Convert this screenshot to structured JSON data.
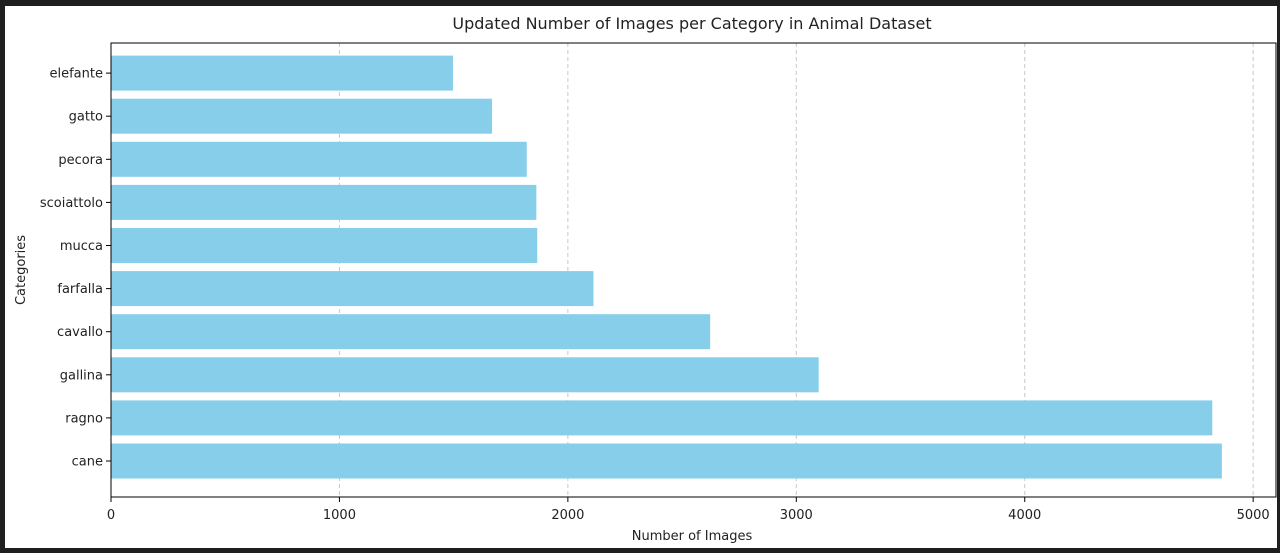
{
  "chart_data": {
    "type": "bar",
    "orientation": "horizontal",
    "title": "Updated Number of Images per Category in Animal Dataset",
    "xlabel": "Number of Images",
    "ylabel": "Categories",
    "categories": [
      "cane",
      "ragno",
      "gallina",
      "cavallo",
      "farfalla",
      "mucca",
      "scoiattolo",
      "pecora",
      "gatto",
      "elefante"
    ],
    "values": [
      4863,
      4821,
      3098,
      2623,
      2112,
      1866,
      1862,
      1820,
      1668,
      1497
    ],
    "xlim": [
      0,
      5100
    ],
    "xticks": [
      0,
      1000,
      2000,
      3000,
      4000,
      5000
    ],
    "grid": "x-dashed",
    "bar_color": "#87ceeb"
  }
}
